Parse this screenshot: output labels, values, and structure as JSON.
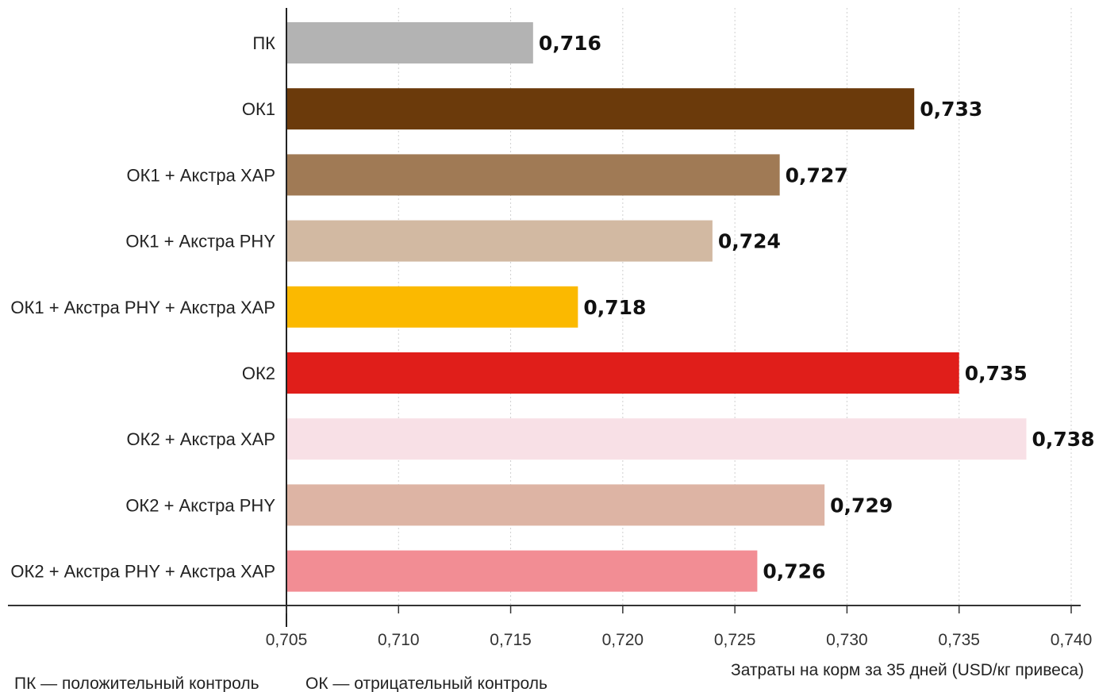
{
  "chart_data": {
    "type": "bar",
    "orientation": "horizontal",
    "categories": [
      "ПК",
      "ОК1",
      "ОК1 + Акстра XAP",
      "ОК1 + Акстра PHY",
      "ОК1 + Акстра PHY + Акстра XAP",
      "ОК2",
      "ОК2 + Акстра XAP",
      "ОК2 + Акстра PHY",
      "ОК2 + Акстра PHY + Акстра XAP"
    ],
    "values": [
      0.716,
      0.733,
      0.727,
      0.724,
      0.718,
      0.735,
      0.738,
      0.729,
      0.726
    ],
    "value_labels": [
      "0,716",
      "0,733",
      "0,727",
      "0,724",
      "0,718",
      "0,735",
      "0,738",
      "0,729",
      "0,726"
    ],
    "colors": [
      "#b3b3b3",
      "#6b3a0b",
      "#a07a55",
      "#d2b9a2",
      "#fbb900",
      "#e01e1a",
      "#f8e0e6",
      "#ddb4a4",
      "#f28d94"
    ],
    "xlim": [
      0.705,
      0.74
    ],
    "ticks": [
      0.705,
      0.71,
      0.715,
      0.72,
      0.725,
      0.73,
      0.735,
      0.74
    ],
    "tick_labels": [
      "0,705",
      "0,710",
      "0,715",
      "0,720",
      "0,725",
      "0,730",
      "0,735",
      "0,740"
    ],
    "xlabel": "Затраты на корм за 35 дней (USD/кг привеса)",
    "ylabel": "",
    "grid": "vertical dotted",
    "legend": [
      "ПК — положительный контроль",
      "ОК — отрицательный контроль"
    ]
  }
}
